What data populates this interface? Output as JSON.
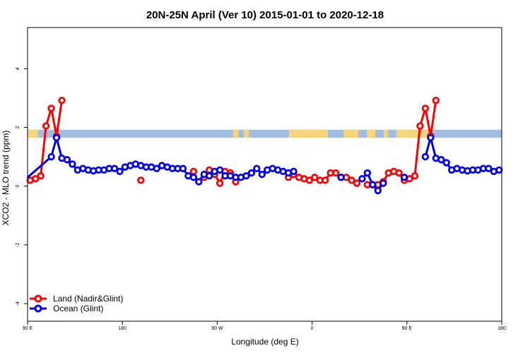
{
  "chart_data": {
    "type": "line",
    "title": "20N-25N April (Ver 10)   2015-01-01 to 2020-12-18",
    "xlabel": "Longitude (deg E)",
    "ylabel": "XCO2 - MLO trend (ppm)",
    "xlim": [
      90,
      540
    ],
    "ylim": [
      -4.6,
      5.4
    ],
    "x_ticks": [
      {
        "value": 90,
        "label": "90 E"
      },
      {
        "value": 180,
        "label": "180"
      },
      {
        "value": 270,
        "label": "90 W"
      },
      {
        "value": 360,
        "label": "0"
      },
      {
        "value": 450,
        "label": "90 E"
      },
      {
        "value": 540,
        "label": "180"
      }
    ],
    "y_ticks": [
      {
        "value": -4,
        "label": "-4"
      },
      {
        "value": -2,
        "label": "-2"
      },
      {
        "value": 0,
        "label": "0"
      },
      {
        "value": 2,
        "label": "2"
      },
      {
        "value": 4,
        "label": "4"
      }
    ],
    "land_ocean_band": {
      "y_bottom": 1.65,
      "y_top": 1.92,
      "ocean_color": "#a3bde0",
      "land_color": "#f5d47e"
    },
    "legend_position": "bottom-left",
    "series": [
      {
        "name": "Land (Nadir&Glint)",
        "color": "#ff0000",
        "segments": [
          [
            [
              92.5,
              0.2
            ],
            [
              97.5,
              0.25
            ],
            [
              102.5,
              0.35
            ],
            [
              107.5,
              2.05
            ],
            [
              112.5,
              2.65
            ],
            [
              117.5,
              1.7
            ],
            [
              122.5,
              2.92
            ]
          ],
          [
            [
              197.5,
              0.2
            ]
          ],
          [
            [
              247.5,
              0.5
            ]
          ],
          [
            [
              257.5,
              0.3
            ],
            [
              262.5,
              0.55
            ]
          ],
          [
            [
              267.5,
              0.4
            ],
            [
              272.5,
              0.1
            ],
            [
              277.5,
              0.5
            ],
            [
              282.5,
              0.45
            ],
            [
              287.5,
              0.15
            ]
          ],
          [
            [
              337.5,
              0.3
            ],
            [
              342.5,
              0.4
            ],
            [
              347.5,
              0.3
            ],
            [
              352.5,
              0.25
            ],
            [
              357.5,
              0.2
            ],
            [
              362.5,
              0.3
            ],
            [
              367.5,
              0.2
            ],
            [
              372.5,
              0.2
            ],
            [
              377.5,
              0.45
            ],
            [
              382.5,
              0.45
            ],
            [
              387.5,
              0.3
            ],
            [
              392.5,
              0.3
            ],
            [
              397.5,
              0.2
            ],
            [
              402.5,
              0.1
            ]
          ],
          [
            [
              412.5,
              0.05
            ],
            [
              417.5,
              0.05
            ],
            [
              422.5,
              0.05
            ],
            [
              427.5,
              0.15
            ],
            [
              432.5,
              0.45
            ],
            [
              437.5,
              0.5
            ],
            [
              442.5,
              0.45
            ],
            [
              447.5,
              0.2
            ],
            [
              452.5,
              0.25
            ],
            [
              457.5,
              0.35
            ],
            [
              462.5,
              2.05
            ],
            [
              467.5,
              2.65
            ],
            [
              472.5,
              1.7
            ],
            [
              477.5,
              2.92
            ]
          ]
        ]
      },
      {
        "name": "Ocean (Glint)",
        "color": "#0000ee",
        "segments": [
          [
            [
              90,
              0.3
            ],
            [
              112.5,
              1.0
            ],
            [
              117.5,
              1.65
            ],
            [
              122.5,
              0.95
            ],
            [
              127.5,
              0.9
            ],
            [
              132.5,
              0.75
            ],
            [
              137.5,
              0.55
            ],
            [
              142.5,
              0.6
            ],
            [
              147.5,
              0.55
            ],
            [
              152.5,
              0.52
            ],
            [
              157.5,
              0.55
            ],
            [
              162.5,
              0.55
            ],
            [
              167.5,
              0.6
            ],
            [
              172.5,
              0.6
            ],
            [
              177.5,
              0.5
            ],
            [
              182.5,
              0.65
            ],
            [
              187.5,
              0.7
            ],
            [
              192.5,
              0.75
            ],
            [
              197.5,
              0.7
            ],
            [
              202.5,
              0.65
            ],
            [
              207.5,
              0.65
            ],
            [
              212.5,
              0.6
            ],
            [
              217.5,
              0.7
            ],
            [
              222.5,
              0.65
            ],
            [
              227.5,
              0.6
            ],
            [
              232.5,
              0.6
            ],
            [
              237.5,
              0.6
            ],
            [
              242.5,
              0.35
            ],
            [
              247.5,
              0.3
            ],
            [
              252.5,
              0.15
            ],
            [
              257.5,
              0.4
            ],
            [
              262.5,
              0.35
            ],
            [
              267.5,
              0.5
            ],
            [
              272.5,
              0.55
            ],
            [
              277.5,
              0.35
            ],
            [
              282.5,
              0.35
            ],
            [
              287.5,
              0.3
            ],
            [
              292.5,
              0.3
            ],
            [
              297.5,
              0.35
            ],
            [
              302.5,
              0.45
            ],
            [
              307.5,
              0.6
            ],
            [
              312.5,
              0.4
            ],
            [
              317.5,
              0.55
            ],
            [
              322.5,
              0.6
            ],
            [
              327.5,
              0.55
            ],
            [
              332.5,
              0.5
            ],
            [
              337.5,
              0.45
            ],
            [
              342.5,
              0.5
            ]
          ],
          [
            [
              387.5,
              0.3
            ]
          ],
          [
            [
              407.5,
              0.25
            ],
            [
              412.5,
              0.45
            ],
            [
              417.5,
              0.05
            ],
            [
              422.5,
              -0.15
            ],
            [
              427.5,
              0.1
            ]
          ],
          [
            [
              447.5,
              0.3
            ]
          ],
          [
            [
              467.5,
              1.0
            ],
            [
              472.5,
              1.65
            ],
            [
              477.5,
              0.95
            ],
            [
              482.5,
              0.9
            ],
            [
              487.5,
              0.8
            ],
            [
              492.5,
              0.55
            ],
            [
              497.5,
              0.6
            ],
            [
              502.5,
              0.55
            ],
            [
              507.5,
              0.52
            ],
            [
              512.5,
              0.55
            ],
            [
              517.5,
              0.55
            ],
            [
              522.5,
              0.6
            ],
            [
              527.5,
              0.6
            ],
            [
              532.5,
              0.5
            ],
            [
              537.5,
              0.55
            ]
          ]
        ]
      }
    ]
  }
}
